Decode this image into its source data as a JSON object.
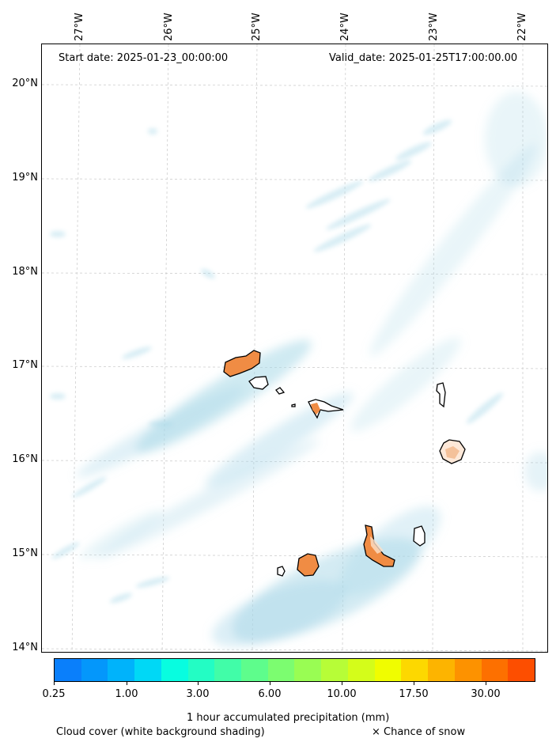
{
  "header": {
    "start_date": "Start date: 2025-01-23_00:00:00",
    "valid_date": "Valid_date: 2025-01-25T17:00:00.00"
  },
  "axes": {
    "lon_labels": [
      "27°W",
      "26°W",
      "25°W",
      "24°W",
      "23°W",
      "22°W"
    ],
    "lat_labels": [
      "20°N",
      "19°N",
      "18°N",
      "17°N",
      "16°N",
      "15°N",
      "14°N"
    ]
  },
  "colorbar": {
    "tick_labels": [
      "0.25",
      "1.00",
      "3.00",
      "6.00",
      "10.00",
      "17.50",
      "30.00"
    ],
    "colors": [
      "#0a7ffb",
      "#0497fb",
      "#00b3fb",
      "#00d8f6",
      "#08fde0",
      "#23fdc4",
      "#41fda8",
      "#5efd8c",
      "#7cfd70",
      "#99fd53",
      "#b7fd37",
      "#d4fd1a",
      "#f0fd00",
      "#fdd800",
      "#fdb400",
      "#fd9200",
      "#fd7000",
      "#fd4e00"
    ],
    "title": "1 hour accumulated precipitation (mm)"
  },
  "legend": {
    "cloud_cover": "Cloud cover (white background shading)",
    "snow": "× Chance of snow"
  },
  "map": {
    "region": "Cape Verde islands",
    "precip_color": "#f08c44",
    "cloud_color": "#a8d8e8"
  }
}
